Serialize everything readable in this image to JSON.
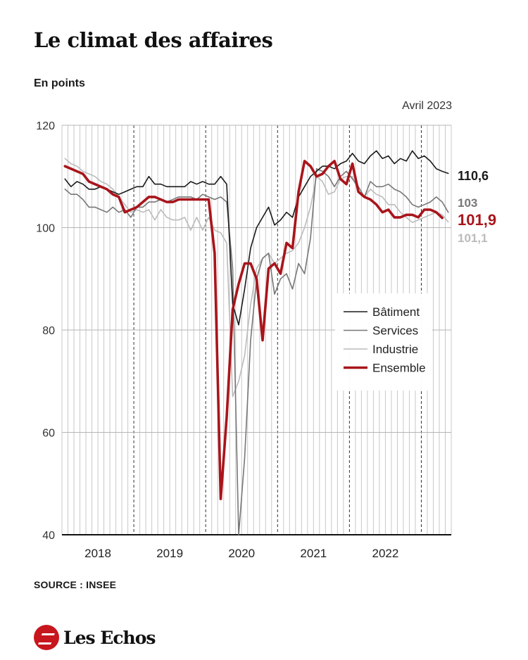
{
  "header": {
    "title": "Le climat des affaires",
    "unit": "En points",
    "date_label": "Avril 2023"
  },
  "footer": {
    "source": "SOURCE : INSEE",
    "brand": "LesEchos"
  },
  "colors": {
    "batiment": "#1a1a1a",
    "services": "#777777",
    "industrie": "#bbbbbb",
    "ensemble": "#a8151b",
    "accent": "#c7161d"
  },
  "chart_data": {
    "type": "line",
    "title": "Le climat des affaires",
    "ylabel": "En points",
    "ylim": [
      40,
      120
    ],
    "yticks": [
      40,
      60,
      80,
      100,
      120
    ],
    "xlim": [
      "2018-01",
      "2023-04"
    ],
    "year_labels": [
      "2018",
      "2019",
      "2020",
      "2021",
      "2022"
    ],
    "grid": "vertical monthly lines, dashed at year boundaries, horizontal at y ticks",
    "legend_position": "center-right",
    "end_labels": [
      {
        "series": "Bâtiment",
        "text": "110,6"
      },
      {
        "series": "Services",
        "text": "103"
      },
      {
        "series": "Ensemble",
        "text": "101,9"
      },
      {
        "series": "Industrie",
        "text": "101,1"
      }
    ],
    "series": [
      {
        "name": "Bâtiment",
        "values": [
          109.5,
          108,
          109,
          108.5,
          107.5,
          107.5,
          108,
          107.5,
          107,
          106.5,
          107,
          107.5,
          108,
          108,
          110,
          108.5,
          108.5,
          108,
          108,
          108,
          108,
          109,
          108.5,
          109,
          108.5,
          108.5,
          110,
          108.5,
          85,
          81,
          88,
          96,
          100,
          102,
          104,
          100.5,
          101.5,
          103,
          102,
          106,
          108,
          110,
          111,
          112,
          112,
          111.5,
          112.5,
          113,
          114.5,
          113,
          112.5,
          114,
          115,
          113.5,
          114,
          112.5,
          113.5,
          113,
          115,
          113.5,
          114,
          113,
          111.5,
          111,
          110.6
        ]
      },
      {
        "name": "Services",
        "values": [
          107.5,
          106.5,
          106.5,
          105.5,
          104,
          104,
          103.5,
          103,
          104,
          103,
          103.5,
          102,
          104,
          104,
          105,
          105,
          105.5,
          105,
          105.5,
          106,
          106,
          106,
          105.5,
          106.5,
          106,
          105.5,
          106,
          105,
          92,
          40,
          55,
          78,
          90,
          94,
          95,
          87,
          90,
          91,
          88,
          93,
          91,
          98,
          111.5,
          111,
          110,
          108,
          110,
          111,
          109.5,
          108,
          106,
          109,
          108,
          108,
          108.5,
          107.5,
          107,
          106,
          104.5,
          104,
          104.5,
          105,
          106,
          105,
          103
        ]
      },
      {
        "name": "Industrie",
        "values": [
          113.5,
          112.5,
          112,
          111,
          110.5,
          110,
          109,
          108.5,
          107.5,
          106,
          104.5,
          103,
          103.5,
          103,
          103.5,
          101.5,
          103.5,
          102,
          101.5,
          101.5,
          102,
          99.5,
          102,
          99.5,
          102,
          99.5,
          99,
          97,
          67,
          70,
          75,
          85,
          92,
          94,
          95,
          93,
          94,
          95,
          95.5,
          97,
          100,
          104,
          110,
          109,
          106.5,
          107,
          109.5,
          110,
          110,
          107,
          106,
          107.5,
          106.5,
          106,
          104.5,
          104.5,
          103,
          102,
          101,
          101.5,
          102,
          102.5,
          103,
          102.5,
          101.1
        ]
      },
      {
        "name": "Ensemble",
        "values": [
          112,
          111.5,
          111,
          110.5,
          109,
          108.5,
          108,
          107.5,
          106.5,
          106,
          103,
          103.5,
          104,
          105,
          106,
          106,
          105.5,
          105,
          105,
          105.5,
          105.5,
          105.5,
          105.5,
          105.5,
          105.5,
          95,
          47,
          63,
          84,
          89,
          93,
          93,
          90,
          78,
          92,
          93,
          91,
          97,
          96,
          107,
          113,
          112,
          110,
          110.5,
          112,
          113,
          109.5,
          108.5,
          112.5,
          107,
          106,
          105.5,
          104.5,
          103,
          103.5,
          102,
          102,
          102.5,
          102.5,
          102,
          103.5,
          103.5,
          103,
          101.9
        ]
      }
    ]
  }
}
